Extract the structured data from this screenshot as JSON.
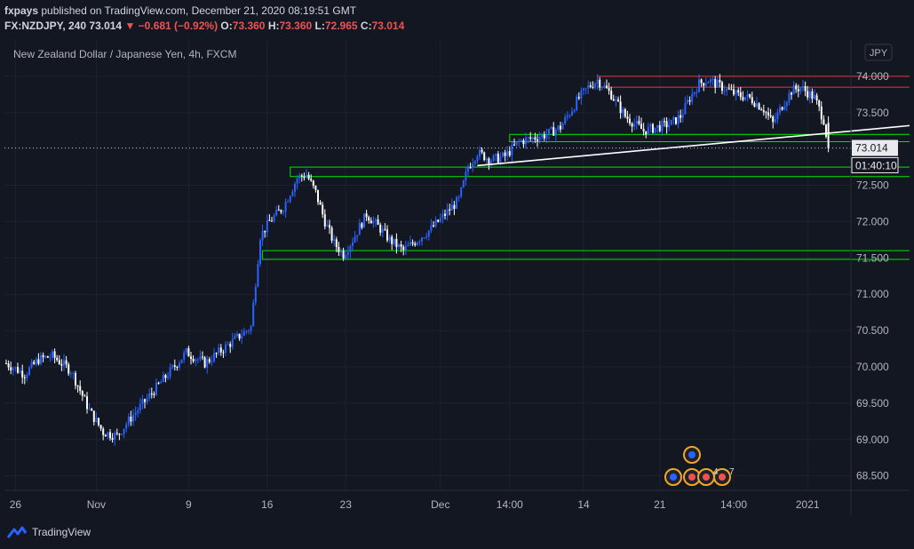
{
  "header": {
    "author": "fxpays",
    "published": " published on TradingView.com, December 21, 2020 08:19:51 GMT",
    "symbol": "FX:NZDJPY, 240",
    "last": "73.014",
    "change": "−0.681 (−0.92%)",
    "o_label": "O:",
    "o": "73.360",
    "h_label": "H:",
    "h": "73.360",
    "l_label": "L:",
    "l": "72.965",
    "c_label": "C:",
    "c": "73.014"
  },
  "chart_title": "New Zealand Dollar / Japanese Yen, 4h, FXCM",
  "currency_label": "JPY",
  "price_tag": "73.014",
  "countdown": "01:40:10",
  "footer": {
    "brand": "TradingView"
  },
  "colors": {
    "background": "#131722",
    "up": "#2962ff",
    "down": "#ffffff",
    "grid": "#1e2230",
    "support": "#00e600",
    "resistance": "#e53935",
    "trendline": "#ffffff"
  },
  "chart_data": {
    "type": "candlestick",
    "timeframe": "4h",
    "ylim": [
      68.3,
      74.5
    ],
    "y_ticks": [
      "68.500",
      "69.000",
      "69.500",
      "70.000",
      "70.500",
      "71.000",
      "71.500",
      "72.000",
      "72.500",
      "73.000",
      "73.500",
      "74.000"
    ],
    "x_ticks": [
      "26",
      "Nov",
      "9",
      "16",
      "23",
      "Dec",
      "14:00",
      "14",
      "21",
      "14:00",
      "2021"
    ],
    "last_price": 73.014,
    "events": [
      "4",
      "7"
    ],
    "price_path": [
      [
        0,
        70.05
      ],
      [
        8,
        69.9
      ],
      [
        14,
        70.1
      ],
      [
        20,
        70.15
      ],
      [
        28,
        69.95
      ],
      [
        36,
        69.4
      ],
      [
        42,
        69.1
      ],
      [
        48,
        69.05
      ],
      [
        54,
        69.3
      ],
      [
        62,
        69.6
      ],
      [
        70,
        69.9
      ],
      [
        78,
        70.2
      ],
      [
        86,
        70.05
      ],
      [
        94,
        70.25
      ],
      [
        100,
        70.4
      ],
      [
        106,
        70.55
      ],
      [
        110,
        71.8
      ],
      [
        114,
        72.0
      ],
      [
        120,
        72.2
      ],
      [
        126,
        72.6
      ],
      [
        130,
        72.65
      ],
      [
        134,
        72.4
      ],
      [
        138,
        72.0
      ],
      [
        142,
        71.7
      ],
      [
        146,
        71.55
      ],
      [
        150,
        71.75
      ],
      [
        156,
        72.1
      ],
      [
        162,
        71.9
      ],
      [
        166,
        71.75
      ],
      [
        172,
        71.6
      ],
      [
        178,
        71.75
      ],
      [
        184,
        71.9
      ],
      [
        190,
        72.1
      ],
      [
        196,
        72.3
      ],
      [
        200,
        72.75
      ],
      [
        204,
        72.95
      ],
      [
        210,
        72.85
      ],
      [
        216,
        72.9
      ],
      [
        222,
        73.1
      ],
      [
        228,
        73.15
      ],
      [
        234,
        73.2
      ],
      [
        240,
        73.3
      ],
      [
        244,
        73.5
      ],
      [
        248,
        73.7
      ],
      [
        252,
        73.85
      ],
      [
        256,
        73.95
      ],
      [
        262,
        73.75
      ],
      [
        268,
        73.45
      ],
      [
        272,
        73.35
      ],
      [
        276,
        73.25
      ],
      [
        282,
        73.3
      ],
      [
        288,
        73.35
      ],
      [
        292,
        73.45
      ],
      [
        296,
        73.7
      ],
      [
        300,
        73.9
      ],
      [
        304,
        73.95
      ],
      [
        310,
        73.85
      ],
      [
        316,
        73.75
      ],
      [
        322,
        73.7
      ],
      [
        328,
        73.55
      ],
      [
        332,
        73.35
      ],
      [
        336,
        73.6
      ],
      [
        340,
        73.8
      ],
      [
        344,
        73.85
      ],
      [
        350,
        73.7
      ],
      [
        354,
        73.4
      ],
      [
        356,
        73.014
      ]
    ],
    "zones": [
      {
        "type": "resistance",
        "y_top": 74.0,
        "y_bottom": 73.85,
        "x_start": 256,
        "x_end": 430
      },
      {
        "type": "support",
        "y_top": 73.2,
        "y_bottom": 73.1,
        "x_start": 218,
        "x_end": 426
      },
      {
        "type": "support",
        "y_top": 72.75,
        "y_bottom": 72.62,
        "x_start": 123,
        "x_end": 460
      },
      {
        "type": "support",
        "y_top": 71.6,
        "y_bottom": 71.48,
        "x_start": 111,
        "x_end": 454
      }
    ],
    "trendline": {
      "from": [
        204,
        72.77
      ],
      "to": [
        428,
        73.43
      ]
    }
  }
}
